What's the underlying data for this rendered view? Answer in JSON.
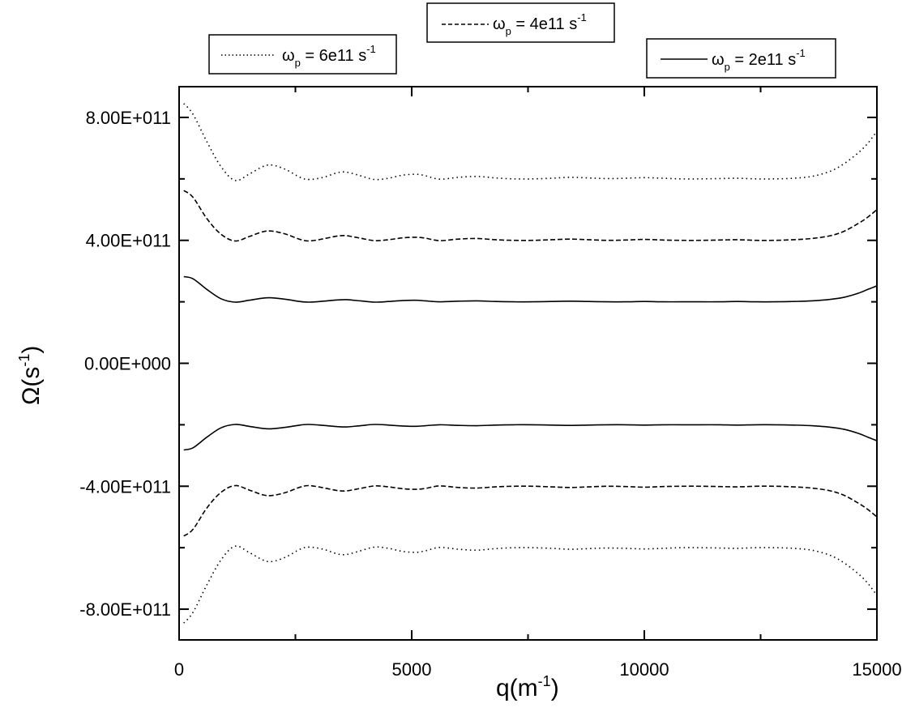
{
  "chart_data": {
    "type": "line",
    "xlabel": {
      "main": "q(m",
      "sup": "-1",
      "close": ")"
    },
    "ylabel": {
      "main": "Ω(s",
      "sup": "-1",
      "close": ")"
    },
    "xlim": [
      0,
      15000
    ],
    "ylim": [
      -900000000000,
      900000000000
    ],
    "x_ticks": [
      0,
      5000,
      10000,
      15000
    ],
    "x_tick_labels": [
      "0",
      "5000",
      "10000",
      "15000"
    ],
    "y_ticks": [
      800000000000,
      400000000000,
      0,
      -400000000000,
      -800000000000
    ],
    "y_tick_labels": [
      "8.00E+011",
      "4.00E+011",
      "0.00E+000",
      "-4.00E+011",
      "-8.00E+011"
    ],
    "grid": false,
    "series": [
      {
        "name": "ω_p = 6e11 s^-1",
        "style": "dotted",
        "color": "#000000",
        "x": [
          100,
          300,
          600,
          900,
          1200,
          1500,
          1800,
          2000,
          2300,
          2600,
          2800,
          3100,
          3400,
          3600,
          3900,
          4200,
          4500,
          4800,
          5100,
          5300,
          5600,
          6000,
          6400,
          6800,
          7200,
          7600,
          8000,
          8400,
          8800,
          9200,
          9600,
          10000,
          10400,
          10800,
          11200,
          11600,
          12000,
          12400,
          12800,
          13200,
          13600,
          14000,
          14300,
          14600,
          14800,
          15000
        ],
        "upper": [
          845000000000.0,
          810000000000.0,
          720000000000.0,
          640000000000.0,
          595000000000.0,
          615000000000.0,
          640000000000.0,
          645000000000.0,
          630000000000.0,
          605000000000.0,
          598000000000.0,
          605000000000.0,
          620000000000.0,
          622000000000.0,
          610000000000.0,
          598000000000.0,
          602000000000.0,
          612000000000.0,
          615000000000.0,
          610000000000.0,
          599000000000.0,
          605000000000.0,
          608000000000.0,
          603000000000.0,
          600000000000.0,
          600000000000.0,
          602000000000.0,
          605000000000.0,
          603000000000.0,
          601000000000.0,
          602000000000.0,
          604000000000.0,
          602000000000.0,
          600000000000.0,
          600000000000.0,
          601000000000.0,
          602000000000.0,
          600000000000.0,
          600000000000.0,
          602000000000.0,
          608000000000.0,
          625000000000.0,
          650000000000.0,
          685000000000.0,
          715000000000.0,
          755000000000.0
        ],
        "lower": [
          -845000000000.0,
          -810000000000.0,
          -720000000000.0,
          -640000000000.0,
          -595000000000.0,
          -615000000000.0,
          -640000000000.0,
          -645000000000.0,
          -630000000000.0,
          -605000000000.0,
          -598000000000.0,
          -605000000000.0,
          -620000000000.0,
          -622000000000.0,
          -610000000000.0,
          -598000000000.0,
          -602000000000.0,
          -612000000000.0,
          -615000000000.0,
          -610000000000.0,
          -599000000000.0,
          -605000000000.0,
          -608000000000.0,
          -603000000000.0,
          -600000000000.0,
          -600000000000.0,
          -602000000000.0,
          -605000000000.0,
          -603000000000.0,
          -601000000000.0,
          -602000000000.0,
          -604000000000.0,
          -602000000000.0,
          -600000000000.0,
          -600000000000.0,
          -601000000000.0,
          -602000000000.0,
          -600000000000.0,
          -600000000000.0,
          -602000000000.0,
          -608000000000.0,
          -625000000000.0,
          -650000000000.0,
          -685000000000.0,
          -715000000000.0,
          -755000000000.0
        ]
      },
      {
        "name": "ω_p = 4e11 s^-1",
        "style": "dashed",
        "color": "#000000",
        "x": [
          100,
          300,
          600,
          900,
          1200,
          1500,
          1800,
          2000,
          2300,
          2600,
          2800,
          3100,
          3400,
          3600,
          3900,
          4200,
          4500,
          4800,
          5100,
          5300,
          5600,
          6000,
          6400,
          6800,
          7200,
          7600,
          8000,
          8400,
          8800,
          9200,
          9600,
          10000,
          10400,
          10800,
          11200,
          11600,
          12000,
          12400,
          12800,
          13200,
          13600,
          14000,
          14300,
          14600,
          14800,
          15000
        ],
        "upper": [
          562000000000.0,
          540000000000.0,
          470000000000.0,
          420000000000.0,
          398000000000.0,
          412000000000.0,
          428000000000.0,
          430000000000.0,
          420000000000.0,
          403000000000.0,
          398000000000.0,
          405000000000.0,
          414000000000.0,
          415000000000.0,
          407000000000.0,
          399000000000.0,
          402000000000.0,
          408000000000.0,
          410000000000.0,
          407000000000.0,
          399000000000.0,
          404000000000.0,
          406000000000.0,
          402000000000.0,
          400000000000.0,
          400000000000.0,
          402000000000.0,
          404000000000.0,
          402000000000.0,
          400000000000.0,
          401000000000.0,
          403000000000.0,
          401000000000.0,
          400000000000.0,
          400000000000.0,
          401000000000.0,
          402000000000.0,
          400000000000.0,
          400000000000.0,
          402000000000.0,
          406000000000.0,
          415000000000.0,
          430000000000.0,
          455000000000.0,
          475000000000.0,
          500000000000.0
        ],
        "lower": [
          -562000000000.0,
          -540000000000.0,
          -470000000000.0,
          -420000000000.0,
          -398000000000.0,
          -412000000000.0,
          -428000000000.0,
          -430000000000.0,
          -420000000000.0,
          -403000000000.0,
          -398000000000.0,
          -405000000000.0,
          -414000000000.0,
          -415000000000.0,
          -407000000000.0,
          -399000000000.0,
          -402000000000.0,
          -408000000000.0,
          -410000000000.0,
          -407000000000.0,
          -399000000000.0,
          -404000000000.0,
          -406000000000.0,
          -402000000000.0,
          -400000000000.0,
          -400000000000.0,
          -402000000000.0,
          -404000000000.0,
          -402000000000.0,
          -400000000000.0,
          -401000000000.0,
          -403000000000.0,
          -401000000000.0,
          -400000000000.0,
          -400000000000.0,
          -401000000000.0,
          -402000000000.0,
          -400000000000.0,
          -400000000000.0,
          -402000000000.0,
          -406000000000.0,
          -415000000000.0,
          -430000000000.0,
          -455000000000.0,
          -475000000000.0,
          -500000000000.0
        ]
      },
      {
        "name": "ω_p = 2e11 s^-1",
        "style": "solid",
        "color": "#000000",
        "x": [
          100,
          300,
          600,
          900,
          1200,
          1500,
          1800,
          2000,
          2300,
          2600,
          2800,
          3100,
          3400,
          3600,
          3900,
          4200,
          4500,
          4800,
          5100,
          5300,
          5600,
          6000,
          6400,
          6800,
          7200,
          7600,
          8000,
          8400,
          8800,
          9200,
          9600,
          10000,
          10400,
          10800,
          11200,
          11600,
          12000,
          12400,
          12800,
          13200,
          13600,
          14000,
          14300,
          14600,
          14800,
          15000
        ],
        "upper": [
          282000000000.0,
          275000000000.0,
          240000000000.0,
          210000000000.0,
          199000000000.0,
          205000000000.0,
          212000000000.0,
          213000000000.0,
          208000000000.0,
          201000000000.0,
          199000000000.0,
          202000000000.0,
          206000000000.0,
          207000000000.0,
          203000000000.0,
          199000000000.0,
          201000000000.0,
          204000000000.0,
          205000000000.0,
          203000000000.0,
          200000000000.0,
          202000000000.0,
          203000000000.0,
          201000000000.0,
          200000000000.0,
          200000000000.0,
          201000000000.0,
          202000000000.0,
          201000000000.0,
          200000000000.0,
          200000000000.0,
          201000000000.0,
          200000000000.0,
          200000000000.0,
          200000000000.0,
          200000000000.0,
          201000000000.0,
          200000000000.0,
          200000000000.0,
          201000000000.0,
          203000000000.0,
          208000000000.0,
          215000000000.0,
          228000000000.0,
          240000000000.0,
          252000000000.0
        ],
        "lower": [
          -282000000000.0,
          -275000000000.0,
          -240000000000.0,
          -210000000000.0,
          -199000000000.0,
          -205000000000.0,
          -212000000000.0,
          -213000000000.0,
          -208000000000.0,
          -201000000000.0,
          -199000000000.0,
          -202000000000.0,
          -206000000000.0,
          -207000000000.0,
          -203000000000.0,
          -199000000000.0,
          -201000000000.0,
          -204000000000.0,
          -205000000000.0,
          -203000000000.0,
          -200000000000.0,
          -202000000000.0,
          -203000000000.0,
          -201000000000.0,
          -200000000000.0,
          -200000000000.0,
          -201000000000.0,
          -202000000000.0,
          -201000000000.0,
          -200000000000.0,
          -200000000000.0,
          -201000000000.0,
          -200000000000.0,
          -200000000000.0,
          -200000000000.0,
          -200000000000.0,
          -201000000000.0,
          -200000000000.0,
          -200000000000.0,
          -201000000000.0,
          -203000000000.0,
          -208000000000.0,
          -215000000000.0,
          -228000000000.0,
          -240000000000.0,
          -252000000000.0
        ]
      }
    ],
    "legends": [
      {
        "series_index": 0,
        "symbol": "ω",
        "sub": "p",
        "value_text": " = 6e11 s",
        "sup": "-1"
      },
      {
        "series_index": 1,
        "symbol": "ω",
        "sub": "p",
        "value_text": " = 4e11 s",
        "sup": "-1"
      },
      {
        "series_index": 2,
        "symbol": "ω",
        "sub": "p",
        "value_text": " = 2e11 s",
        "sup": "-1"
      }
    ]
  }
}
